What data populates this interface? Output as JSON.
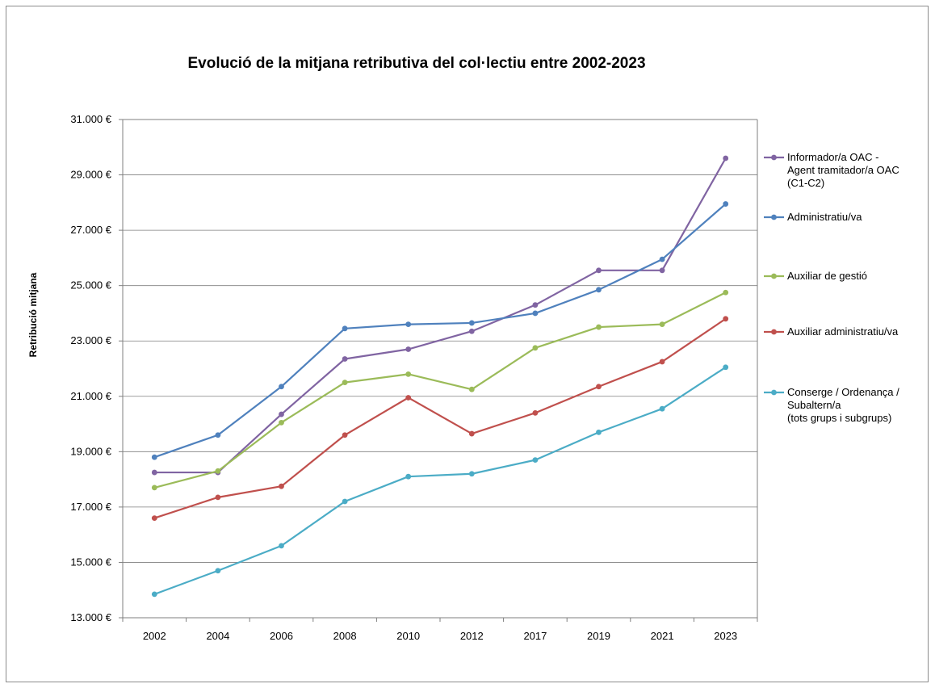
{
  "chart_data": {
    "type": "line",
    "title": "Evolució de la mitjana retributiva del col·lectiu entre 2002-2023",
    "xlabel": "",
    "ylabel": "Retribució mitjana",
    "categories": [
      "2002",
      "2004",
      "2006",
      "2008",
      "2010",
      "2012",
      "2017",
      "2019",
      "2021",
      "2023"
    ],
    "ylim": [
      13000,
      31000
    ],
    "yticks": [
      13000,
      15000,
      17000,
      19000,
      21000,
      23000,
      25000,
      27000,
      29000,
      31000
    ],
    "ytick_labels": [
      "13.000 €",
      "15.000 €",
      "17.000 €",
      "19.000 €",
      "21.000 €",
      "23.000 €",
      "25.000 €",
      "27.000 €",
      "29.000 €",
      "31.000 €"
    ],
    "grid": "horizontal",
    "legend_position": "right",
    "series": [
      {
        "name": "Informador/a OAC - Agent tramitador/a OAC (C1-C2)",
        "legend_lines": [
          "Informador/a OAC -",
          "Agent tramitador/a OAC",
          "(C1-C2)"
        ],
        "color": "#8064a2",
        "values": [
          18250,
          18250,
          20350,
          22350,
          22700,
          23350,
          24300,
          25550,
          25550,
          29600
        ]
      },
      {
        "name": "Administratiu/va",
        "legend_lines": [
          "Administratiu/va"
        ],
        "color": "#4f81bd",
        "values": [
          18800,
          19600,
          21350,
          23450,
          23600,
          23650,
          24000,
          24850,
          25950,
          27950
        ]
      },
      {
        "name": "Auxiliar de gestió",
        "legend_lines": [
          "Auxiliar de gestió"
        ],
        "color": "#9bbb59",
        "values": [
          17700,
          18300,
          20050,
          21500,
          21800,
          21250,
          22750,
          23500,
          23600,
          24750
        ]
      },
      {
        "name": "Auxiliar administratiu/va",
        "legend_lines": [
          "Auxiliar administratiu/va"
        ],
        "color": "#c0504d",
        "values": [
          16600,
          17350,
          17750,
          19600,
          20950,
          19650,
          20400,
          21350,
          22250,
          23800
        ]
      },
      {
        "name": "Conserge / Ordenança / Subaltern/a (tots grups i subgrups)",
        "legend_lines": [
          "Conserge / Ordenança /",
          "Subaltern/a",
          "(tots grups i subgrups)"
        ],
        "color": "#4bacc6",
        "values": [
          13850,
          14700,
          15600,
          17200,
          18100,
          18200,
          18700,
          19700,
          20550,
          22050
        ]
      }
    ]
  }
}
